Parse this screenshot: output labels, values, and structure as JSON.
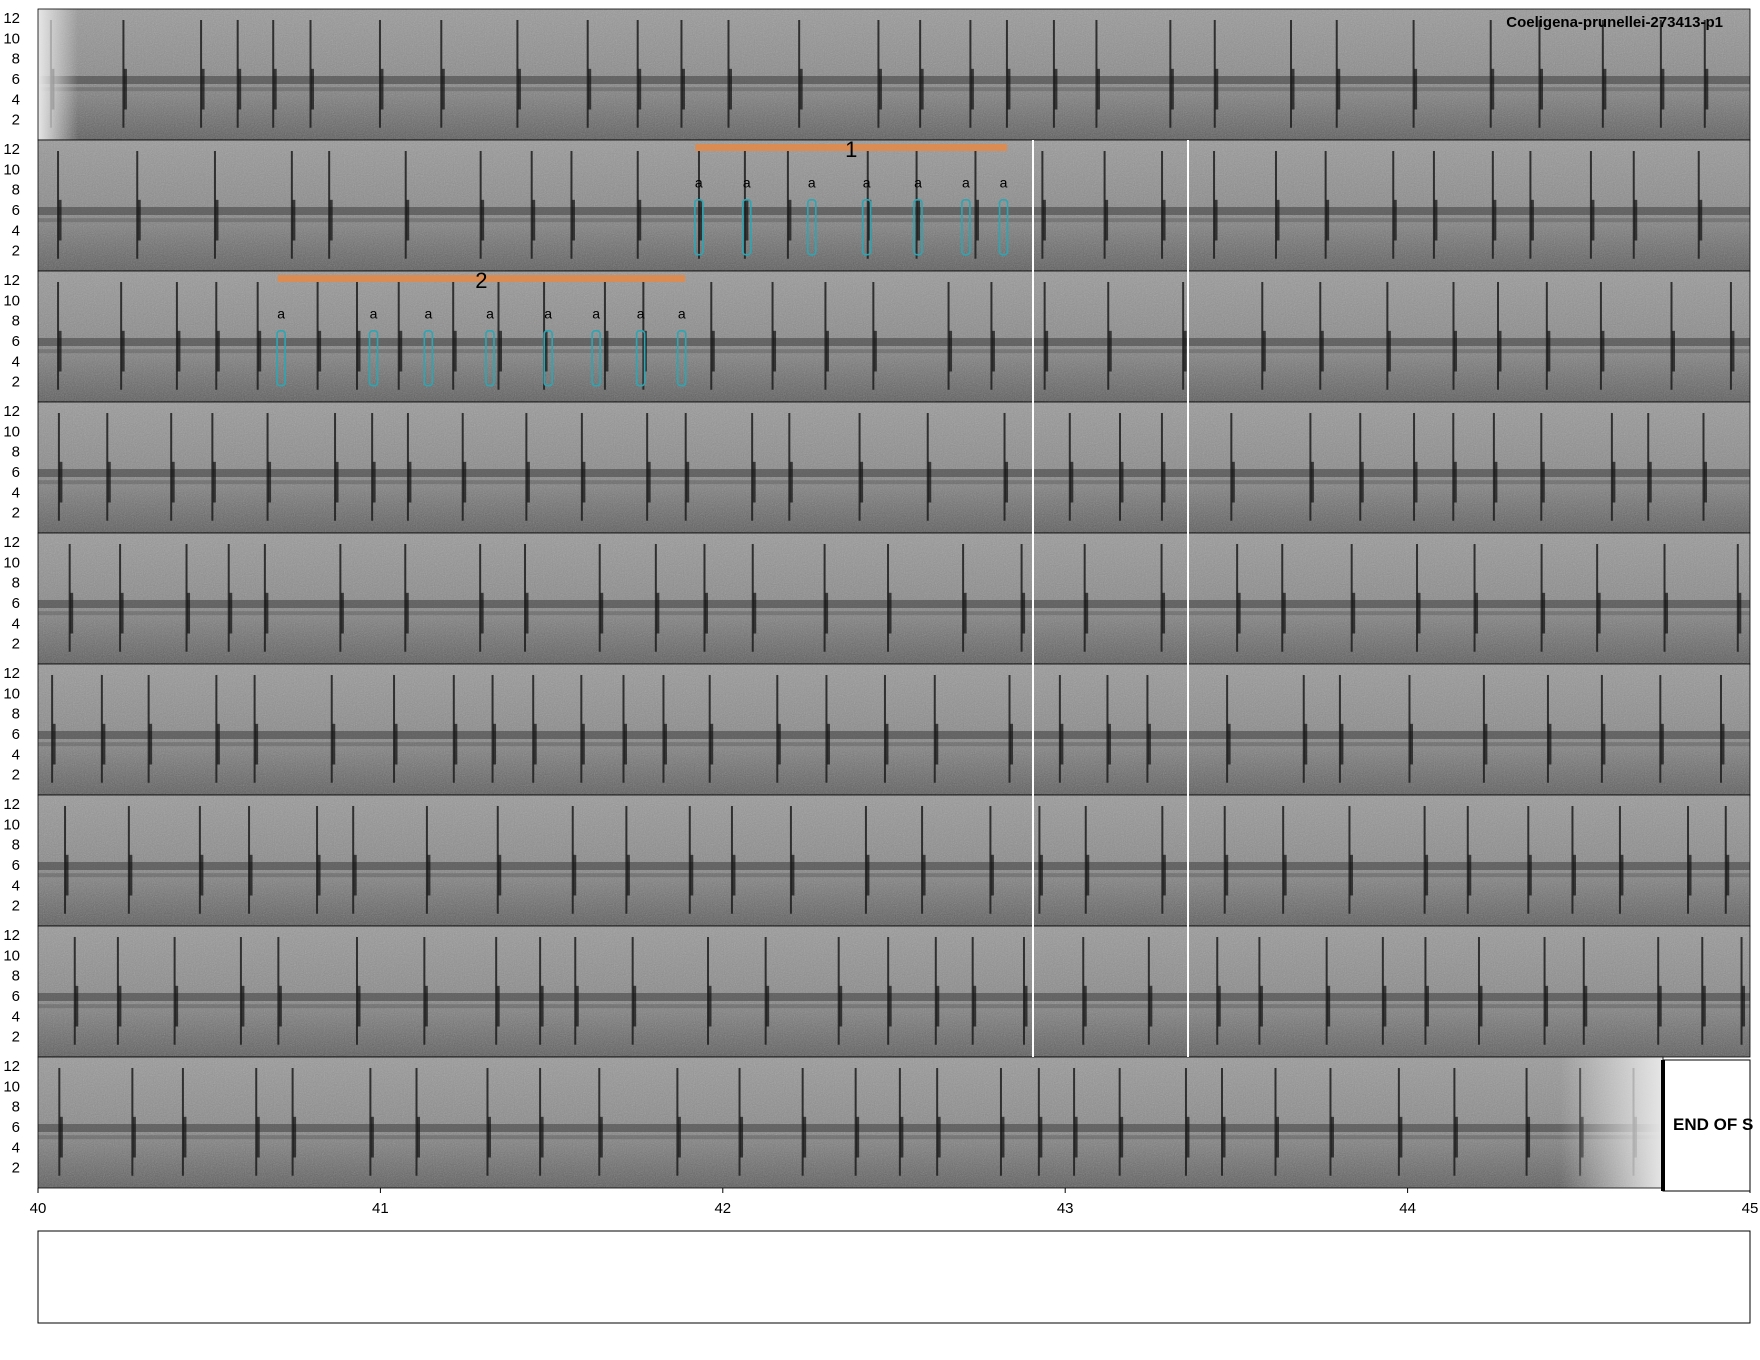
{
  "chart_data": {
    "type": "spectrogram",
    "title": "Coeligena-prunellei-273413-p1",
    "end_label": "END OF S",
    "y_ticks": [
      "2",
      "4",
      "6",
      "8",
      "10",
      "12"
    ],
    "x_ticks": [
      "40",
      "41",
      "42",
      "43",
      "44",
      "45"
    ],
    "colors": {
      "background": "#ffffff",
      "spectrogram_base": "#8a8a8a",
      "spectrogram_dark": "#2a2a2a",
      "segment_bar": "#e08a4a",
      "note_box": "#2aa7b5",
      "divider": "#ffffff"
    },
    "annotations": [
      {
        "label": "1",
        "row": 2,
        "notes": [
          "a",
          "a",
          "a",
          "a",
          "a",
          "a",
          "a"
        ],
        "note_positions": [
          41.93,
          42.07,
          42.26,
          42.42,
          42.57,
          42.71,
          42.82
        ],
        "start": 41.92,
        "end": 42.83
      },
      {
        "label": "2",
        "row": 3,
        "notes": [
          "a",
          "a",
          "a",
          "a",
          "a",
          "a",
          "a",
          "a"
        ],
        "note_positions": [
          40.71,
          40.98,
          41.14,
          41.32,
          41.49,
          41.63,
          41.76,
          41.88
        ],
        "start": 40.7,
        "end": 41.89
      }
    ]
  }
}
